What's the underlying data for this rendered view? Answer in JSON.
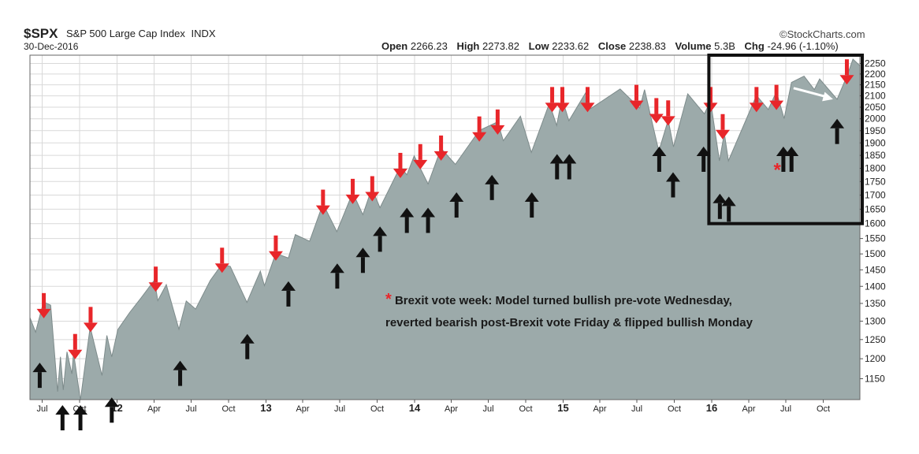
{
  "header": {
    "symbol": "$SPX",
    "name": "S&P 500 Large Cap Index",
    "exchange": "INDX",
    "date": "30-Dec-2016",
    "brand": "©StockCharts.com",
    "ohlc": {
      "open_label": "Open",
      "open": "2266.23",
      "high_label": "High",
      "high": "2273.82",
      "low_label": "Low",
      "low": "2233.62",
      "close_label": "Close",
      "close": "2238.83",
      "volume_label": "Volume",
      "volume": "5.3B",
      "chg_label": "Chg",
      "chg": "-24.96 (-1.10%)"
    }
  },
  "annotation": {
    "star": "*",
    "line1": "Brexit vote week: Model turned bullish pre-vote Wednesday,",
    "line2": "reverted bearish post-Brexit vote Friday & flipped bullish Monday",
    "box_star": "*"
  },
  "colors": {
    "area_fill": "#9caaaa",
    "area_line": "#7d8b8b",
    "grid": "#d9d9d9",
    "bearish_arrow": "#e8262a",
    "bullish_arrow": "#111111",
    "highlight_box": "#111111"
  },
  "chart_data": {
    "type": "area",
    "title": "$SPX S&P 500 Large Cap Index INDX",
    "y_axis_side": "right",
    "ylim": [
      1100,
      2290
    ],
    "y_ticks": [
      1150,
      1200,
      1250,
      1300,
      1350,
      1400,
      1450,
      1500,
      1550,
      1600,
      1650,
      1700,
      1750,
      1800,
      1850,
      1900,
      1950,
      2000,
      2050,
      2100,
      2150,
      2200,
      2250
    ],
    "y_scale": "log",
    "x_range": [
      "2011-06-01",
      "2016-12-30"
    ],
    "x_ticks": [
      {
        "date": "2011-07-01",
        "label": "Jul",
        "bold": false
      },
      {
        "date": "2011-10-01",
        "label": "Oct",
        "bold": false
      },
      {
        "date": "2012-01-01",
        "label": "12",
        "bold": true
      },
      {
        "date": "2012-04-01",
        "label": "Apr",
        "bold": false
      },
      {
        "date": "2012-07-01",
        "label": "Jul",
        "bold": false
      },
      {
        "date": "2012-10-01",
        "label": "Oct",
        "bold": false
      },
      {
        "date": "2013-01-01",
        "label": "13",
        "bold": true
      },
      {
        "date": "2013-04-01",
        "label": "Apr",
        "bold": false
      },
      {
        "date": "2013-07-01",
        "label": "Jul",
        "bold": false
      },
      {
        "date": "2013-10-01",
        "label": "Oct",
        "bold": false
      },
      {
        "date": "2014-01-01",
        "label": "14",
        "bold": true
      },
      {
        "date": "2014-04-01",
        "label": "Apr",
        "bold": false
      },
      {
        "date": "2014-07-01",
        "label": "Jul",
        "bold": false
      },
      {
        "date": "2014-10-01",
        "label": "Oct",
        "bold": false
      },
      {
        "date": "2015-01-01",
        "label": "15",
        "bold": true
      },
      {
        "date": "2015-04-01",
        "label": "Apr",
        "bold": false
      },
      {
        "date": "2015-07-01",
        "label": "Jul",
        "bold": false
      },
      {
        "date": "2015-10-01",
        "label": "Oct",
        "bold": false
      },
      {
        "date": "2016-01-01",
        "label": "16",
        "bold": true
      },
      {
        "date": "2016-04-01",
        "label": "Apr",
        "bold": false
      },
      {
        "date": "2016-07-01",
        "label": "Jul",
        "bold": false
      },
      {
        "date": "2016-10-01",
        "label": "Oct",
        "bold": false
      }
    ],
    "series": [
      {
        "values": [
          [
            "2011-06-01",
            1310
          ],
          [
            "2011-06-15",
            1270
          ],
          [
            "2011-07-01",
            1340
          ],
          [
            "2011-07-07",
            1353
          ],
          [
            "2011-07-22",
            1345
          ],
          [
            "2011-08-08",
            1119
          ],
          [
            "2011-08-15",
            1205
          ],
          [
            "2011-08-22",
            1123
          ],
          [
            "2011-08-31",
            1218
          ],
          [
            "2011-09-12",
            1162
          ],
          [
            "2011-09-16",
            1216
          ],
          [
            "2011-10-03",
            1099
          ],
          [
            "2011-10-27",
            1284
          ],
          [
            "2011-11-25",
            1158
          ],
          [
            "2011-12-07",
            1261
          ],
          [
            "2011-12-19",
            1205
          ],
          [
            "2012-01-03",
            1277
          ],
          [
            "2012-02-01",
            1324
          ],
          [
            "2012-02-29",
            1366
          ],
          [
            "2012-04-02",
            1419
          ],
          [
            "2012-04-10",
            1358
          ],
          [
            "2012-05-01",
            1405
          ],
          [
            "2012-06-01",
            1278
          ],
          [
            "2012-06-19",
            1357
          ],
          [
            "2012-07-12",
            1334
          ],
          [
            "2012-08-17",
            1418
          ],
          [
            "2012-09-14",
            1466
          ],
          [
            "2012-10-05",
            1461
          ],
          [
            "2012-11-15",
            1353
          ],
          [
            "2012-12-18",
            1446
          ],
          [
            "2012-12-28",
            1402
          ],
          [
            "2013-01-25",
            1502
          ],
          [
            "2013-02-25",
            1487
          ],
          [
            "2013-03-14",
            1563
          ],
          [
            "2013-04-18",
            1541
          ],
          [
            "2013-05-21",
            1669
          ],
          [
            "2013-06-24",
            1573
          ],
          [
            "2013-08-02",
            1709
          ],
          [
            "2013-08-27",
            1631
          ],
          [
            "2013-09-18",
            1725
          ],
          [
            "2013-10-08",
            1655
          ],
          [
            "2013-11-27",
            1807
          ],
          [
            "2013-12-13",
            1775
          ],
          [
            "2013-12-31",
            1848
          ],
          [
            "2014-02-03",
            1741
          ],
          [
            "2014-03-07",
            1878
          ],
          [
            "2014-04-11",
            1815
          ],
          [
            "2014-06-09",
            1951
          ],
          [
            "2014-07-24",
            1987
          ],
          [
            "2014-08-07",
            1909
          ],
          [
            "2014-09-18",
            2011
          ],
          [
            "2014-10-15",
            1862
          ],
          [
            "2014-11-28",
            2067
          ],
          [
            "2014-12-16",
            1972
          ],
          [
            "2014-12-29",
            2090
          ],
          [
            "2015-01-15",
            1992
          ],
          [
            "2015-02-25",
            2113
          ],
          [
            "2015-03-10",
            2044
          ],
          [
            "2015-05-21",
            2131
          ],
          [
            "2015-07-08",
            2046
          ],
          [
            "2015-07-20",
            2128
          ],
          [
            "2015-08-24",
            1867
          ],
          [
            "2015-09-16",
            1995
          ],
          [
            "2015-09-29",
            1884
          ],
          [
            "2015-11-03",
            2109
          ],
          [
            "2015-12-14",
            2021
          ],
          [
            "2015-12-29",
            2078
          ],
          [
            "2016-01-20",
            1829
          ],
          [
            "2016-02-01",
            1940
          ],
          [
            "2016-02-11",
            1829
          ],
          [
            "2016-04-20",
            2102
          ],
          [
            "2016-05-19",
            2040
          ],
          [
            "2016-06-08",
            2119
          ],
          [
            "2016-06-27",
            2001
          ],
          [
            "2016-07-15",
            2161
          ],
          [
            "2016-08-15",
            2190
          ],
          [
            "2016-09-09",
            2128
          ],
          [
            "2016-09-22",
            2177
          ],
          [
            "2016-11-04",
            2085
          ],
          [
            "2016-11-30",
            2199
          ],
          [
            "2016-12-13",
            2271
          ],
          [
            "2016-12-30",
            2239
          ]
        ]
      }
    ],
    "bearish_arrows": [
      {
        "date": "2011-07-05",
        "price": 1380
      },
      {
        "date": "2011-09-20",
        "price": 1265
      },
      {
        "date": "2011-10-28",
        "price": 1340
      },
      {
        "date": "2012-04-05",
        "price": 1460
      },
      {
        "date": "2012-09-15",
        "price": 1520
      },
      {
        "date": "2013-01-25",
        "price": 1560
      },
      {
        "date": "2013-05-21",
        "price": 1720
      },
      {
        "date": "2013-08-02",
        "price": 1760
      },
      {
        "date": "2013-09-19",
        "price": 1770
      },
      {
        "date": "2013-11-27",
        "price": 1860
      },
      {
        "date": "2014-01-15",
        "price": 1895
      },
      {
        "date": "2014-03-07",
        "price": 1930
      },
      {
        "date": "2014-06-09",
        "price": 2010
      },
      {
        "date": "2014-07-24",
        "price": 2040
      },
      {
        "date": "2014-12-05",
        "price": 2140
      },
      {
        "date": "2014-12-30",
        "price": 2140
      },
      {
        "date": "2015-03-02",
        "price": 2140
      },
      {
        "date": "2015-06-30",
        "price": 2150
      },
      {
        "date": "2015-08-18",
        "price": 2090
      },
      {
        "date": "2015-09-16",
        "price": 2080
      },
      {
        "date": "2015-12-29",
        "price": 2140
      },
      {
        "date": "2016-01-28",
        "price": 2020
      },
      {
        "date": "2016-04-20",
        "price": 2140
      },
      {
        "date": "2016-06-08",
        "price": 2150
      },
      {
        "date": "2016-11-28",
        "price": 2270
      }
    ],
    "bullish_arrows": [
      {
        "date": "2011-06-25",
        "price": 1190
      },
      {
        "date": "2011-08-20",
        "price": 1020
      },
      {
        "date": "2011-10-03",
        "price": 1020
      },
      {
        "date": "2011-12-19",
        "price": 1105
      },
      {
        "date": "2012-06-04",
        "price": 1195
      },
      {
        "date": "2012-11-16",
        "price": 1265
      },
      {
        "date": "2013-02-25",
        "price": 1415
      },
      {
        "date": "2013-06-25",
        "price": 1470
      },
      {
        "date": "2013-08-27",
        "price": 1520
      },
      {
        "date": "2013-10-08",
        "price": 1590
      },
      {
        "date": "2013-12-13",
        "price": 1655
      },
      {
        "date": "2014-02-03",
        "price": 1655
      },
      {
        "date": "2014-04-14",
        "price": 1710
      },
      {
        "date": "2014-07-10",
        "price": 1775
      },
      {
        "date": "2014-10-16",
        "price": 1710
      },
      {
        "date": "2014-12-17",
        "price": 1855
      },
      {
        "date": "2015-01-16",
        "price": 1855
      },
      {
        "date": "2015-08-25",
        "price": 1885
      },
      {
        "date": "2015-09-28",
        "price": 1785
      },
      {
        "date": "2015-12-12",
        "price": 1885
      },
      {
        "date": "2016-01-21",
        "price": 1705
      },
      {
        "date": "2016-02-12",
        "price": 1695
      },
      {
        "date": "2016-06-25",
        "price": 1885
      },
      {
        "date": "2016-07-15",
        "price": 1885
      },
      {
        "date": "2016-11-04",
        "price": 2000
      }
    ],
    "highlight_box": {
      "start": "2015-12-25",
      "end": "2016-12-30",
      "low": 1600,
      "high": 2290
    },
    "pointer_arrow": {
      "from": {
        "date": "2016-07-20",
        "price": 2135
      },
      "to": {
        "date": "2016-10-25",
        "price": 2085
      }
    },
    "box_star_point": {
      "date": "2016-06-10",
      "price": 1800
    }
  }
}
